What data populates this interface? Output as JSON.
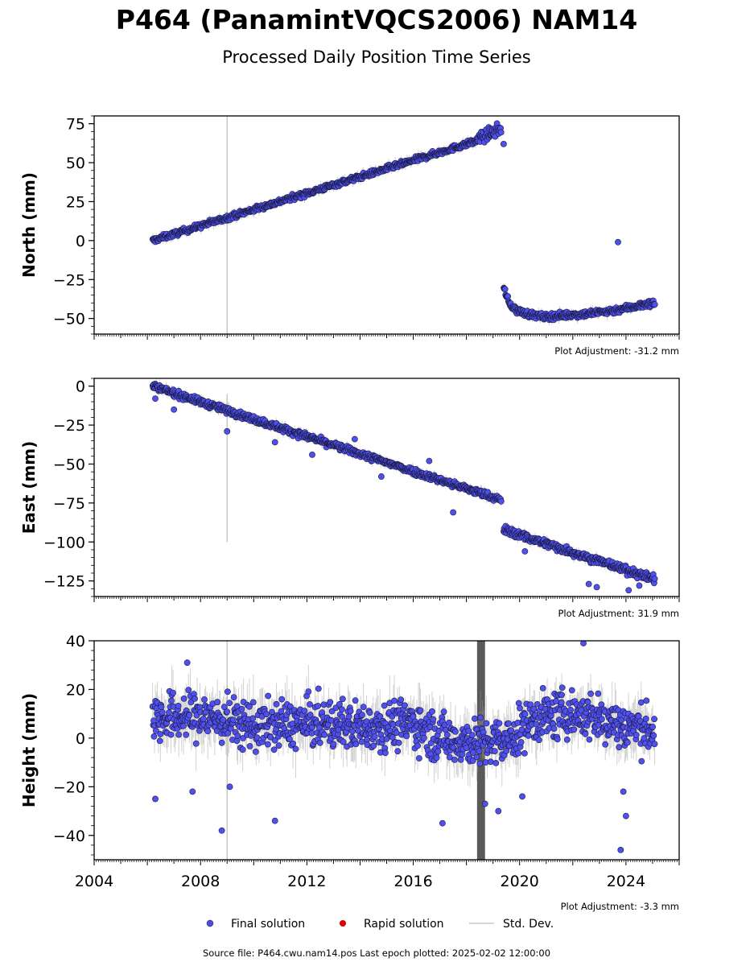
{
  "chart_data": {
    "title": "P464 (PanamintVQCS2006) NAM14",
    "subtitle": "Processed Daily Position Time Series",
    "type": "scatter",
    "xlim": [
      2004.0,
      2026.0
    ],
    "x_ticks": [
      "2004",
      "2008",
      "2012",
      "2016",
      "2020",
      "2024"
    ],
    "legend": {
      "position": "bottom-center",
      "entries": [
        {
          "label": "Final solution",
          "color": "#4a4ae6"
        },
        {
          "label": "Rapid solution",
          "color": "#e00000"
        },
        {
          "label": "Std. Dev.",
          "color": "#c8c8c8"
        }
      ]
    },
    "source_text": "Source file: P464.cwu.nam14.pos  Last epoch plotted: 2025-02-02 12:00:00",
    "panels": [
      {
        "ylabel": "North (mm)",
        "ylim": [
          -60,
          80
        ],
        "y_ticks": [
          -50,
          -25,
          0,
          25,
          50,
          75
        ],
        "adjustment": "Plot Adjustment: -31.2 mm",
        "series": [
          {
            "x": [
              2006.2,
              2018.4
            ],
            "y": [
              0,
              64
            ],
            "scatter": 1.2
          },
          {
            "x": [
              2018.4,
              2019.3
            ],
            "y": [
              65,
              72
            ],
            "scatter": 2.5
          },
          {
            "x": [
              2019.4,
              2019.6,
              2019.9,
              2020.3,
              2020.9,
              2021.6,
              2022.5,
              2023.5,
              2024.4,
              2025.08
            ],
            "y": [
              -30,
              -40,
              -45,
              -47,
              -49,
              -48,
              -47,
              -45,
              -42,
              -40
            ],
            "scatter": 1.5
          }
        ],
        "outliers": [
          {
            "x": 2023.7,
            "y": -1
          },
          {
            "x": 2019.4,
            "y": 62
          }
        ],
        "error_bar_spike": {
          "x": 2009.0,
          "y": [
            -60,
            80
          ]
        }
      },
      {
        "ylabel": "East (mm)",
        "ylim": [
          -135,
          5
        ],
        "y_ticks": [
          -125,
          -100,
          -75,
          -50,
          -25,
          0
        ],
        "adjustment": "Plot Adjustment: 31.9 mm",
        "series": [
          {
            "x": [
              2006.2,
              2019.3
            ],
            "y": [
              0,
              -73
            ],
            "scatter": 1.5
          },
          {
            "x": [
              2019.4,
              2025.08
            ],
            "y": [
              -92,
              -124
            ],
            "scatter": 1.8
          }
        ],
        "outliers": [
          {
            "x": 2006.3,
            "y": -8
          },
          {
            "x": 2007.0,
            "y": -15
          },
          {
            "x": 2009.0,
            "y": -29
          },
          {
            "x": 2010.8,
            "y": -36
          },
          {
            "x": 2012.2,
            "y": -44
          },
          {
            "x": 2013.8,
            "y": -34
          },
          {
            "x": 2014.8,
            "y": -58
          },
          {
            "x": 2016.6,
            "y": -48
          },
          {
            "x": 2017.5,
            "y": -81
          },
          {
            "x": 2020.2,
            "y": -106
          },
          {
            "x": 2022.6,
            "y": -127
          },
          {
            "x": 2022.9,
            "y": -129
          },
          {
            "x": 2024.1,
            "y": -131
          },
          {
            "x": 2024.5,
            "y": -128
          }
        ],
        "error_bar_spike": {
          "x": 2009.0,
          "y": [
            -100,
            -5
          ]
        }
      },
      {
        "ylabel": "Height (mm)",
        "ylim": [
          -50,
          40
        ],
        "y_ticks": [
          -40,
          -20,
          0,
          20
        ],
        "y_ticks_extra": [
          40
        ],
        "adjustment": "Plot Adjustment: -3.3 mm",
        "series": [
          {
            "x": [
              2006.2,
              2008.0,
              2010.0,
              2012.0,
              2014.0,
              2016.0,
              2017.0,
              2018.5,
              2019.5,
              2020.5,
              2022.0,
              2023.0,
              2024.0,
              2025.08
            ],
            "y": [
              8,
              9,
              5,
              6,
              5,
              6,
              0,
              -2,
              -2,
              8,
              10,
              8,
              5,
              3
            ],
            "scatter": 7
          }
        ],
        "outliers": [
          {
            "x": 2006.3,
            "y": -25
          },
          {
            "x": 2007.7,
            "y": -22
          },
          {
            "x": 2008.8,
            "y": -38
          },
          {
            "x": 2009.1,
            "y": -20
          },
          {
            "x": 2010.8,
            "y": -34
          },
          {
            "x": 2017.1,
            "y": -35
          },
          {
            "x": 2018.7,
            "y": -27
          },
          {
            "x": 2019.2,
            "y": -30
          },
          {
            "x": 2020.1,
            "y": -24
          },
          {
            "x": 2022.4,
            "y": 39
          },
          {
            "x": 2023.8,
            "y": -46
          },
          {
            "x": 2023.9,
            "y": -22
          },
          {
            "x": 2024.0,
            "y": -32
          },
          {
            "x": 2007.5,
            "y": 31
          }
        ],
        "error_bar_spike": {
          "x": 2009.0,
          "y": [
            -50,
            40
          ]
        },
        "noise_band": {
          "x": [
            2018.4,
            2018.7
          ],
          "y": [
            -50,
            40
          ]
        }
      }
    ]
  }
}
